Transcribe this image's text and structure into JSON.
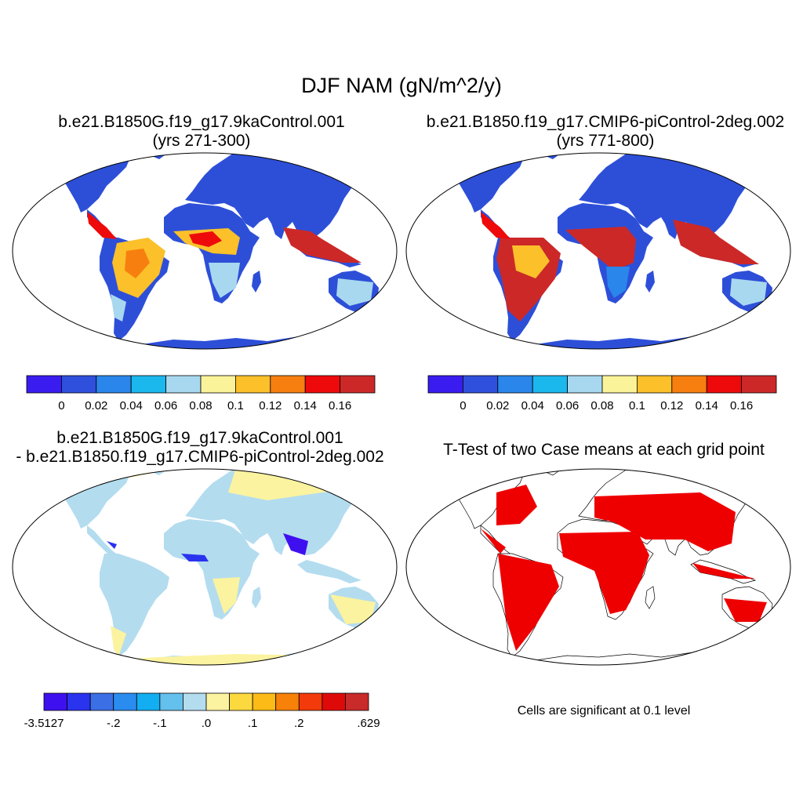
{
  "title": "DJF NAM (gN/m^2/y)",
  "panels": [
    {
      "id": "case1",
      "title_lines": [
        "b.e21.B1850G.f19_g17.9kaControl.001",
        "(yrs 271-300)"
      ]
    },
    {
      "id": "case2",
      "title_lines": [
        "b.e21.B1850.f19_g17.CMIP6-piControl-2deg.002",
        "(yrs 771-800)"
      ]
    },
    {
      "id": "difference",
      "title_lines": [
        "b.e21.B1850G.f19_g17.9kaControl.001",
        "- b.e21.B1850.f19_g17.CMIP6-piControl-2deg.002"
      ]
    },
    {
      "id": "ttest",
      "title_lines": [
        "T-Test of two Case means at each grid point"
      ]
    }
  ],
  "colorbars": {
    "case": {
      "labels": [
        "0",
        "0.02",
        "0.04",
        "0.06",
        "0.08",
        "0.1",
        "0.12",
        "0.14",
        "0.16"
      ],
      "colors": [
        "#3a1cf0",
        "#2f50dc",
        "#2a86ea",
        "#1bb8ee",
        "#a8d8ef",
        "#fbf39a",
        "#fbc02a",
        "#f77f0f",
        "#ee0a0a",
        "#cc2828"
      ]
    },
    "diff": {
      "labels": [
        "-3.5127",
        "-.2",
        "-.1",
        ".0",
        ".1",
        ".2",
        ".629"
      ],
      "label_box_index": [
        0,
        3,
        5,
        7,
        9,
        11,
        14
      ],
      "colors": [
        "#3f10ef",
        "#2a33ee",
        "#3b6fe6",
        "#2a8cef",
        "#13aef1",
        "#64c0ec",
        "#b3dcef",
        "#fbf3a0",
        "#fcd93f",
        "#fcbb16",
        "#f8810a",
        "#f23a0a",
        "#de0a0a",
        "#c92a2a"
      ]
    }
  },
  "significance": {
    "note": "Cells are significant at 0.1 level",
    "color": "#ee0000"
  }
}
